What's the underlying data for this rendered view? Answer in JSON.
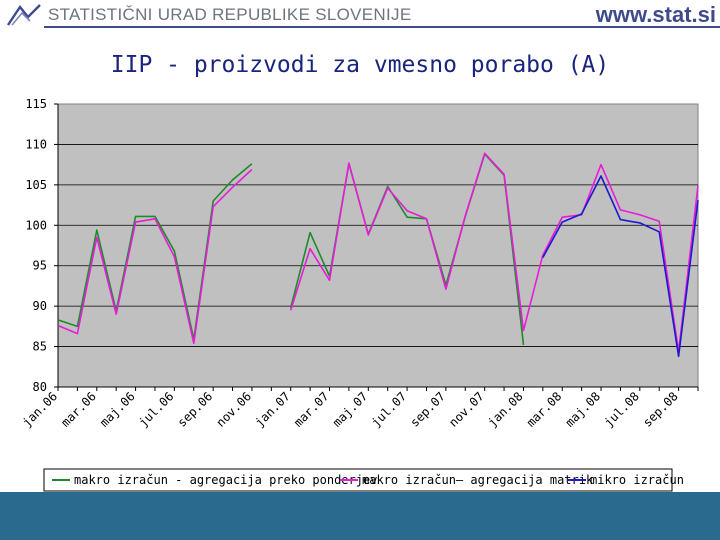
{
  "header": {
    "org_name": "STATISTIČNI URAD REPUBLIKE SLOVENIJE",
    "website": "www.stat.si",
    "logo_icon": "surs-logo-icon"
  },
  "colors": {
    "header_blue": "#3d4a8c",
    "plot_bg": "#c0c0c0",
    "footer_band": "#2a6a8e",
    "series_green": "#1e8a2e",
    "series_magenta": "#e81cd8",
    "series_blue": "#1a1acf"
  },
  "chart_data": {
    "type": "line",
    "title": "IIP - proizvodi za vmesno porabo (A)",
    "ylim": [
      80,
      115
    ],
    "yticks": [
      80,
      85,
      90,
      95,
      100,
      105,
      110,
      115
    ],
    "grid": true,
    "legend_position": "bottom",
    "x_tick_labels": [
      "jan.06",
      "mar.06",
      "maj.06",
      "jul.06",
      "sep.06",
      "nov.06",
      "jan.07",
      "mar.07",
      "maj.07",
      "jul.07",
      "sep.07",
      "nov.07",
      "jan.08",
      "mar.08",
      "maj.08",
      "jul.08",
      "sep.08"
    ],
    "x": [
      "jan.06",
      "feb.06",
      "mar.06",
      "apr.06",
      "maj.06",
      "jun.06",
      "jul.06",
      "avg.06",
      "sep.06",
      "okt.06",
      "nov.06",
      "dec.06",
      "jan.07",
      "feb.07",
      "mar.07",
      "apr.07",
      "maj.07",
      "jun.07",
      "jul.07",
      "avg.07",
      "sep.07",
      "okt.07",
      "nov.07",
      "dec.07",
      "jan.08",
      "feb.08",
      "mar.08",
      "apr.08",
      "maj.08",
      "jun.08",
      "jul.08",
      "avg.08",
      "sep.08",
      "okt.08"
    ],
    "series": [
      {
        "name": "makro izračun - agregacija preko ponderjev",
        "color": "#1e8a2e",
        "values": [
          88.3,
          87.5,
          99.4,
          89.4,
          101.1,
          101.1,
          96.8,
          85.9,
          103.0,
          105.6,
          107.6,
          null,
          89.8,
          99.1,
          93.7,
          107.6,
          98.9,
          104.8,
          101.0,
          100.8,
          92.6,
          101.1,
          108.8,
          106.2,
          85.2,
          null,
          null,
          null,
          null,
          null,
          null,
          null,
          null,
          null
        ]
      },
      {
        "name": "makro izračun– agregacija matrik",
        "color": "#e81cd8",
        "values": [
          87.6,
          86.6,
          98.5,
          89.0,
          100.4,
          100.8,
          96.1,
          85.4,
          102.3,
          104.7,
          106.9,
          null,
          89.5,
          97.1,
          93.2,
          107.7,
          98.8,
          104.6,
          101.8,
          100.8,
          92.1,
          101.2,
          108.9,
          106.3,
          87.0,
          96.3,
          101.0,
          101.3,
          107.5,
          101.9,
          101.3,
          100.5,
          84.4,
          104.9
        ]
      },
      {
        "name": "mikro izračun",
        "color": "#1a1acf",
        "values": [
          null,
          null,
          null,
          null,
          null,
          null,
          null,
          null,
          null,
          null,
          null,
          null,
          null,
          null,
          null,
          null,
          null,
          null,
          null,
          null,
          null,
          null,
          null,
          null,
          null,
          96.0,
          100.4,
          101.4,
          106.1,
          100.7,
          100.3,
          99.2,
          83.8,
          103.1
        ]
      }
    ]
  }
}
